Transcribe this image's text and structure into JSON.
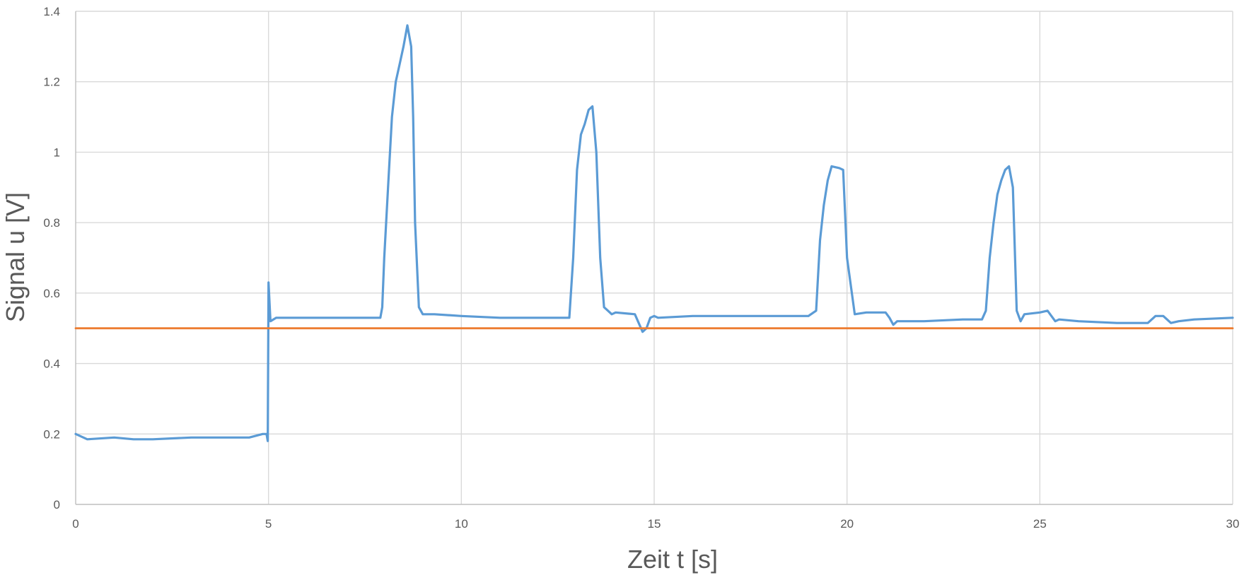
{
  "chart_data": {
    "type": "line",
    "xlabel": "Zeit t [s]",
    "ylabel": "Signal u [V]",
    "xlim": [
      0,
      30
    ],
    "ylim": [
      0,
      1.4
    ],
    "x_ticks": [
      "0",
      "5",
      "10",
      "15",
      "20",
      "25",
      "30"
    ],
    "y_ticks": [
      "0",
      "0.2",
      "0.4",
      "0.6",
      "0.8",
      "1",
      "1.2",
      "1.4"
    ],
    "grid": true,
    "legend": "none",
    "series": [
      {
        "color": "#5b9bd5",
        "x": [
          0,
          0.3,
          1,
          1.5,
          2,
          3,
          4,
          4.5,
          4.85,
          4.95,
          4.98,
          5.0,
          5.05,
          5.2,
          6,
          7,
          7.9,
          7.95,
          8.0,
          8.1,
          8.2,
          8.3,
          8.4,
          8.5,
          8.6,
          8.7,
          8.75,
          8.8,
          8.9,
          9.0,
          9.3,
          10,
          11,
          12,
          12.8,
          12.9,
          13.0,
          13.1,
          13.2,
          13.3,
          13.4,
          13.5,
          13.6,
          13.7,
          13.8,
          13.9,
          14.0,
          14.5,
          14.7,
          14.8,
          14.9,
          15.0,
          15.1,
          16,
          17,
          18,
          19,
          19.2,
          19.3,
          19.4,
          19.5,
          19.6,
          19.8,
          19.9,
          20.0,
          20.2,
          20.5,
          21.0,
          21.1,
          21.2,
          21.3,
          22,
          23,
          23.5,
          23.6,
          23.7,
          23.8,
          23.9,
          24.0,
          24.1,
          24.2,
          24.3,
          24.4,
          24.5,
          24.6,
          25.0,
          25.2,
          25.4,
          25.5,
          26,
          27,
          27.8,
          28.0,
          28.2,
          28.4,
          28.6,
          29,
          30
        ],
        "y": [
          0.2,
          0.185,
          0.19,
          0.185,
          0.185,
          0.19,
          0.19,
          0.19,
          0.2,
          0.2,
          0.18,
          0.63,
          0.52,
          0.53,
          0.53,
          0.53,
          0.53,
          0.56,
          0.7,
          0.9,
          1.1,
          1.2,
          1.25,
          1.3,
          1.36,
          1.3,
          1.1,
          0.8,
          0.56,
          0.54,
          0.54,
          0.535,
          0.53,
          0.53,
          0.53,
          0.7,
          0.95,
          1.05,
          1.08,
          1.12,
          1.13,
          1.0,
          0.7,
          0.56,
          0.55,
          0.54,
          0.545,
          0.54,
          0.49,
          0.5,
          0.53,
          0.535,
          0.53,
          0.535,
          0.535,
          0.535,
          0.535,
          0.55,
          0.75,
          0.85,
          0.92,
          0.96,
          0.955,
          0.95,
          0.7,
          0.54,
          0.545,
          0.545,
          0.53,
          0.51,
          0.52,
          0.52,
          0.525,
          0.525,
          0.55,
          0.7,
          0.8,
          0.88,
          0.92,
          0.95,
          0.96,
          0.9,
          0.55,
          0.52,
          0.54,
          0.545,
          0.55,
          0.52,
          0.525,
          0.52,
          0.515,
          0.515,
          0.535,
          0.535,
          0.515,
          0.52,
          0.525,
          0.53
        ]
      },
      {
        "color": "#ed7d31",
        "x": [
          0,
          30
        ],
        "y": [
          0.5,
          0.5
        ]
      }
    ]
  }
}
